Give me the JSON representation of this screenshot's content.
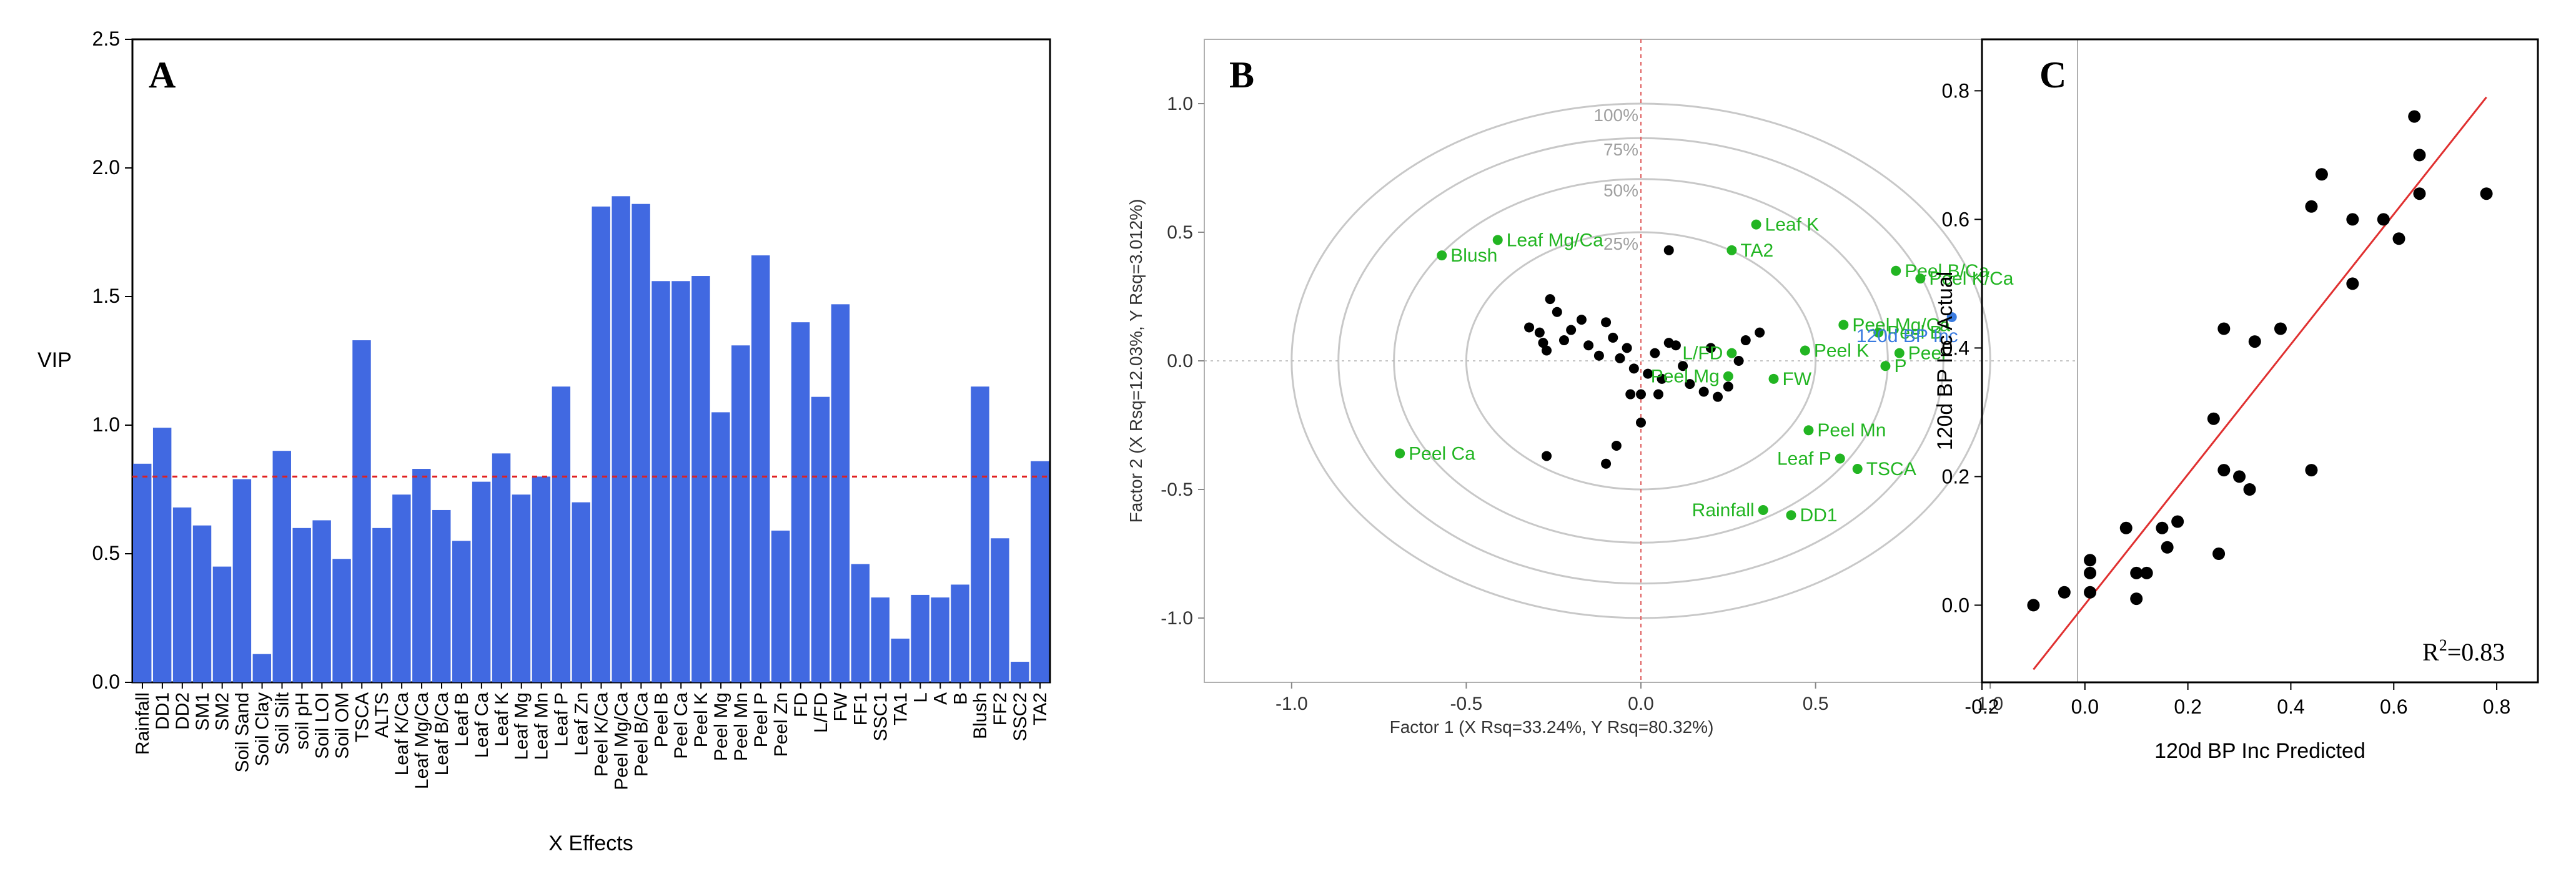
{
  "chart_data": [
    {
      "type": "bar",
      "panel_label": "A",
      "ylabel": "VIP",
      "xlabel": "X Effects",
      "ylim": [
        0,
        2.5
      ],
      "yticks": [
        "0.0",
        "0.5",
        "1.0",
        "1.5",
        "2.0",
        "2.5"
      ],
      "threshold": 0.8,
      "bar_color": "#4169e1",
      "categories": [
        "Rainfall",
        "DD1",
        "DD2",
        "SM1",
        "SM2",
        "Soil Sand",
        "Soil Clay",
        "Soil Silt",
        "soil pH",
        "Soil LOI",
        "Soil OM",
        "TSCA",
        "ALTS",
        "Leaf K/Ca",
        "Leaf Mg/Ca",
        "Leaf B/Ca",
        "Leaf B",
        "Leaf Ca",
        "Leaf K",
        "Leaf Mg",
        "Leaf Mn",
        "Leaf P",
        "Leaf Zn",
        "Peel K/Ca",
        "Peel Mg/Ca",
        "Peel B/Ca",
        "Peel B",
        "Peel Ca",
        "Peel K",
        "Peel Mg",
        "Peel Mn",
        "Peel P",
        "Peel Zn",
        "FD",
        "L/FD",
        "FW",
        "FF1",
        "SSC1",
        "TA1",
        "L",
        "A",
        "B",
        "Blush",
        "FF2",
        "SSC2",
        "TA2"
      ],
      "values": [
        0.85,
        0.99,
        0.68,
        0.61,
        0.45,
        0.79,
        0.11,
        0.9,
        0.6,
        0.63,
        0.48,
        1.33,
        0.6,
        0.73,
        0.83,
        0.67,
        0.55,
        0.78,
        0.89,
        0.73,
        0.8,
        1.15,
        0.7,
        1.85,
        1.89,
        1.86,
        1.56,
        1.56,
        1.58,
        1.05,
        1.31,
        1.66,
        0.59,
        1.4,
        1.11,
        1.47,
        0.46,
        0.33,
        0.17,
        0.34,
        0.33,
        0.38,
        1.15,
        0.56,
        0.08,
        0.86
      ]
    },
    {
      "type": "scatter",
      "panel_label": "B",
      "xlabel": "Factor 1 (X Rsq=33.24%, Y Rsq=80.32%)",
      "ylabel": "Factor 2 (X Rsq=12.03%, Y Rsq=3.012%)",
      "xlim": [
        -1.25,
        1.25
      ],
      "ylim": [
        -1.25,
        1.25
      ],
      "xticks": [
        "-1.0",
        "-0.5",
        "0.0",
        "0.5",
        "1.0"
      ],
      "yticks": [
        "1.0",
        "0.5",
        "0.0",
        "-0.5",
        "-1.0"
      ],
      "circles": [
        {
          "r": 1.0,
          "label": "100%"
        },
        {
          "r": 0.866,
          "label": "75%"
        },
        {
          "r": 0.707,
          "label": "50%"
        },
        {
          "r": 0.5,
          "label": "25%"
        }
      ],
      "colors": {
        "x_points": "#000000",
        "x_loadings": "#22b522",
        "y_response": "#3a7be0",
        "circle": "#c8c8c8",
        "zero_line": "#e06060"
      },
      "x_points": [
        [
          -0.32,
          0.13
        ],
        [
          -0.29,
          0.11
        ],
        [
          -0.26,
          0.24
        ],
        [
          -0.24,
          0.19
        ],
        [
          -0.28,
          0.07
        ],
        [
          -0.27,
          0.04
        ],
        [
          -0.22,
          0.08
        ],
        [
          -0.2,
          0.12
        ],
        [
          -0.17,
          0.16
        ],
        [
          -0.15,
          0.06
        ],
        [
          -0.12,
          0.02
        ],
        [
          -0.1,
          0.15
        ],
        [
          -0.08,
          0.09
        ],
        [
          -0.06,
          0.01
        ],
        [
          -0.04,
          0.05
        ],
        [
          -0.02,
          -0.03
        ],
        [
          0.0,
          -0.13
        ],
        [
          0.02,
          -0.05
        ],
        [
          0.04,
          0.03
        ],
        [
          0.06,
          -0.07
        ],
        [
          0.08,
          0.07
        ],
        [
          0.1,
          0.06
        ],
        [
          0.12,
          -0.02
        ],
        [
          0.14,
          -0.09
        ],
        [
          0.18,
          -0.12
        ],
        [
          0.2,
          0.05
        ],
        [
          0.22,
          -0.14
        ],
        [
          0.25,
          -0.1
        ],
        [
          0.28,
          0.0
        ],
        [
          0.3,
          0.08
        ],
        [
          0.34,
          0.11
        ],
        [
          0.08,
          0.43
        ],
        [
          -0.27,
          -0.37
        ],
        [
          -0.1,
          -0.4
        ],
        [
          -0.07,
          -0.33
        ],
        [
          0.0,
          -0.24
        ],
        [
          -0.03,
          -0.13
        ],
        [
          0.05,
          -0.13
        ]
      ],
      "x_loadings": [
        {
          "label": "Leaf Mg/Ca",
          "x": -0.41,
          "y": 0.47
        },
        {
          "label": "Blush",
          "x": -0.57,
          "y": 0.41
        },
        {
          "label": "Leaf K",
          "x": 0.33,
          "y": 0.53
        },
        {
          "label": "TA2",
          "x": 0.26,
          "y": 0.43
        },
        {
          "label": "Peel B/Ca",
          "x": 0.73,
          "y": 0.35
        },
        {
          "label": "Peel K/Ca",
          "x": 0.8,
          "y": 0.32
        },
        {
          "label": "Peel Mg/Ca",
          "x": 0.58,
          "y": 0.14
        },
        {
          "label": "Peel B",
          "x": 0.68,
          "y": 0.11
        },
        {
          "label": "L/FD",
          "x": 0.26,
          "y": 0.03
        },
        {
          "label": "Peel K",
          "x": 0.47,
          "y": 0.04
        },
        {
          "label": "Peel",
          "x": 0.74,
          "y": 0.03
        },
        {
          "label": "P",
          "x": 0.7,
          "y": -0.02
        },
        {
          "label": "FW",
          "x": 0.38,
          "y": -0.07
        },
        {
          "label": "Peel Mg",
          "x": 0.25,
          "y": -0.06
        },
        {
          "label": "Peel Mn",
          "x": 0.48,
          "y": -0.27
        },
        {
          "label": "Leaf P",
          "x": 0.57,
          "y": -0.38
        },
        {
          "label": "TSCA",
          "x": 0.62,
          "y": -0.42
        },
        {
          "label": "Peel Ca",
          "x": -0.69,
          "y": -0.36
        },
        {
          "label": "Rainfall",
          "x": 0.35,
          "y": -0.58
        },
        {
          "label": "DD1",
          "x": 0.43,
          "y": -0.6
        }
      ],
      "y_response": {
        "label": "120d BP Inc",
        "x": 0.89,
        "y": 0.17
      }
    },
    {
      "type": "scatter",
      "panel_label": "C",
      "xlabel": "120d BP Inc Predicted",
      "ylabel": "120d BP Inc Actual",
      "xlim": [
        -0.2,
        0.88
      ],
      "ylim": [
        -0.12,
        0.88
      ],
      "xticks": [
        "-0.2",
        "0.0",
        "0.2",
        "0.4",
        "0.6",
        "0.8"
      ],
      "yticks": [
        "0.0",
        "0.2",
        "0.4",
        "0.6",
        "0.8"
      ],
      "fit_line": [
        [
          -0.1,
          -0.1
        ],
        [
          0.78,
          0.79
        ]
      ],
      "fit_color": "#e03030",
      "annotation_prefix": "R",
      "annotation_exponent": "2",
      "annotation_value": "=0.83",
      "points": [
        [
          -0.1,
          0.0
        ],
        [
          -0.04,
          0.02
        ],
        [
          0.01,
          0.07
        ],
        [
          0.01,
          0.05
        ],
        [
          0.01,
          0.02
        ],
        [
          0.08,
          0.12
        ],
        [
          0.1,
          0.05
        ],
        [
          0.1,
          0.01
        ],
        [
          0.12,
          0.05
        ],
        [
          0.15,
          0.12
        ],
        [
          0.16,
          0.09
        ],
        [
          0.18,
          0.13
        ],
        [
          0.25,
          0.29
        ],
        [
          0.26,
          0.08
        ],
        [
          0.27,
          0.21
        ],
        [
          0.27,
          0.43
        ],
        [
          0.3,
          0.2
        ],
        [
          0.32,
          0.18
        ],
        [
          0.33,
          0.41
        ],
        [
          0.38,
          0.43
        ],
        [
          0.44,
          0.21
        ],
        [
          0.44,
          0.62
        ],
        [
          0.46,
          0.67
        ],
        [
          0.52,
          0.5
        ],
        [
          0.52,
          0.6
        ],
        [
          0.58,
          0.6
        ],
        [
          0.61,
          0.57
        ],
        [
          0.64,
          0.76
        ],
        [
          0.65,
          0.64
        ],
        [
          0.65,
          0.7
        ],
        [
          0.78,
          0.64
        ]
      ]
    }
  ]
}
